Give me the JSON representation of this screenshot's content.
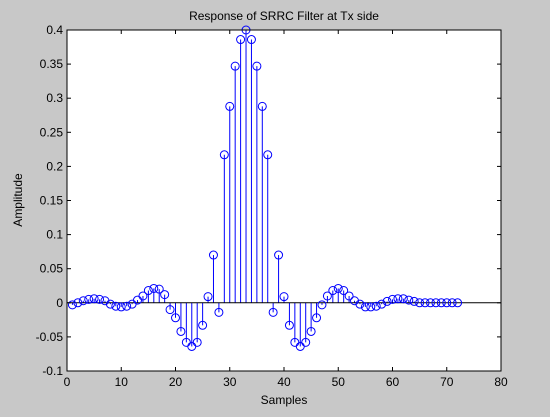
{
  "window": {
    "background_color": "#c8c8c8"
  },
  "chart_data": {
    "type": "stem",
    "title": "Response of SRRC Filter at Tx side",
    "xlabel": "Samples",
    "ylabel": "Amplitude",
    "xlim": [
      0,
      80
    ],
    "ylim": [
      -0.1,
      0.4
    ],
    "x_ticks": [
      0,
      10,
      20,
      30,
      40,
      50,
      60,
      70,
      80
    ],
    "y_ticks": [
      -0.1,
      -0.05,
      0,
      0.05,
      0.1,
      0.15,
      0.2,
      0.25,
      0.3,
      0.35,
      0.4
    ],
    "x_tick_labels": [
      "0",
      "10",
      "20",
      "30",
      "40",
      "50",
      "60",
      "70",
      "80"
    ],
    "y_tick_labels": [
      "-0.1",
      "-0.05",
      "0",
      "0.05",
      "0.1",
      "0.15",
      "0.2",
      "0.25",
      "0.3",
      "0.35",
      "0.4"
    ],
    "grid": false,
    "baseline": 0,
    "colors": {
      "stem": "#0000ff",
      "baseline": "#000000",
      "axes_background": "#ffffff",
      "figure_background": "#c8c8c8"
    },
    "series": [
      {
        "x": [
          1,
          2,
          3,
          4,
          5,
          6,
          7,
          8,
          9,
          10,
          11,
          12,
          13,
          14,
          15,
          16,
          17,
          18,
          19,
          20,
          21,
          22,
          23,
          24,
          25,
          26,
          27,
          28,
          29,
          30,
          31,
          32,
          33,
          34,
          35,
          36,
          37,
          38,
          39,
          40,
          41,
          42,
          43,
          44,
          45,
          46,
          47,
          48,
          49,
          50,
          51,
          52,
          53,
          54,
          55,
          56,
          57,
          58,
          59,
          60,
          61,
          62,
          63,
          64,
          65,
          66,
          67,
          68,
          69,
          70,
          71,
          72
        ],
        "values": [
          -0.003,
          0.0,
          0.003,
          0.005,
          0.006,
          0.005,
          0.003,
          -0.002,
          -0.005,
          -0.006,
          -0.005,
          -0.002,
          0.004,
          0.01,
          0.018,
          0.021,
          0.02,
          0.012,
          -0.01,
          -0.022,
          -0.042,
          -0.058,
          -0.064,
          -0.058,
          -0.033,
          0.009,
          0.07,
          -0.014,
          0.217,
          0.288,
          0.347,
          0.386,
          0.4,
          0.386,
          0.347,
          0.288,
          0.217,
          -0.014,
          0.07,
          0.009,
          -0.033,
          -0.058,
          -0.064,
          -0.058,
          -0.042,
          -0.022,
          -0.003,
          0.01,
          0.018,
          0.021,
          0.018,
          0.01,
          0.003,
          -0.002,
          -0.006,
          -0.006,
          -0.005,
          -0.002,
          0.002,
          0.005,
          0.006,
          0.006,
          0.004,
          0.002,
          0.0,
          0.0,
          0.0,
          0.0,
          0.0,
          0.0,
          0.0,
          0.0
        ]
      }
    ]
  }
}
